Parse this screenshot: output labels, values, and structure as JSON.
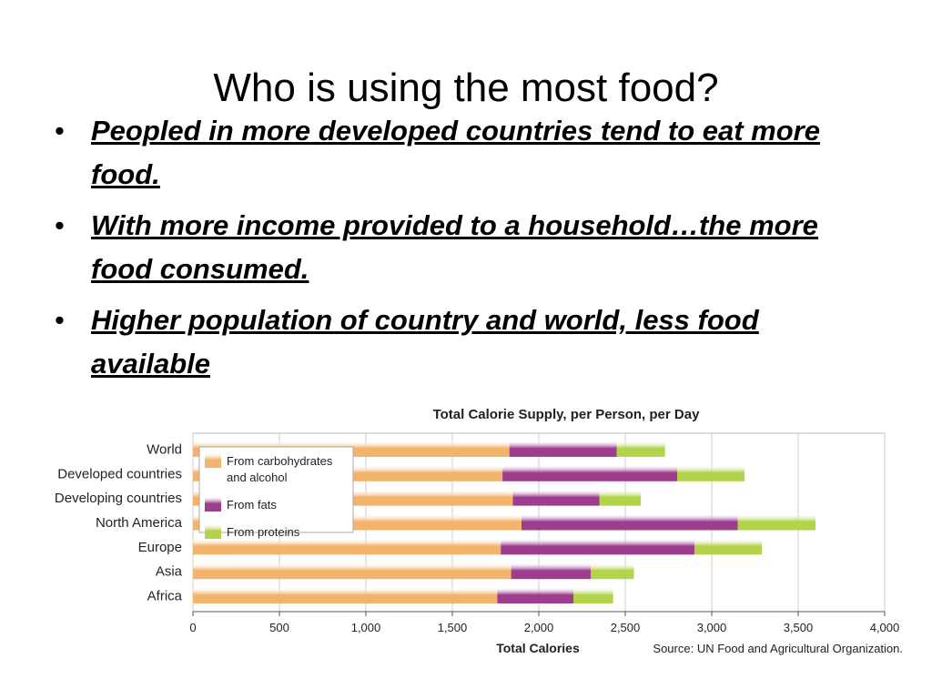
{
  "slide": {
    "title": "Who is using the most food?",
    "bullets": [
      "Peopled in more developed countries tend to eat more food.",
      "With more income provided to a household…the more food consumed.",
      "Higher population of country and world, less food available"
    ]
  },
  "chart_data": {
    "type": "bar",
    "orientation": "horizontal",
    "stacked": true,
    "title": "Total Calorie Supply, per Person, per Day",
    "xlabel": "Total Calories",
    "source": "Source: UN Food and Agricultural Organization.",
    "xlim": [
      0,
      4000
    ],
    "xticks": [
      0,
      500,
      1000,
      1500,
      2000,
      2500,
      3000,
      3500,
      4000
    ],
    "xtick_labels": [
      "0",
      "500",
      "1,000",
      "1,500",
      "2,000",
      "2,500",
      "3,000",
      "3,500",
      "4,000"
    ],
    "grid": true,
    "legend_position": "top-left",
    "categories": [
      "World",
      "Developed countries",
      "Developing countries",
      "North America",
      "Europe",
      "Asia",
      "Africa"
    ],
    "series": [
      {
        "name": "From carbohydrates and alcohol",
        "legend_lines": [
          "From carbohydrates",
          "and alcohol"
        ],
        "color": "#f2b36b",
        "values": [
          1830,
          1790,
          1850,
          1900,
          1780,
          1840,
          1760
        ]
      },
      {
        "name": "From fats",
        "legend_lines": [
          "From fats"
        ],
        "color": "#9e3d8e",
        "values": [
          620,
          1010,
          500,
          1250,
          1120,
          460,
          440
        ]
      },
      {
        "name": "From proteins",
        "legend_lines": [
          "From proteins"
        ],
        "color": "#b3d34a",
        "values": [
          280,
          390,
          240,
          450,
          390,
          250,
          230
        ]
      }
    ]
  }
}
